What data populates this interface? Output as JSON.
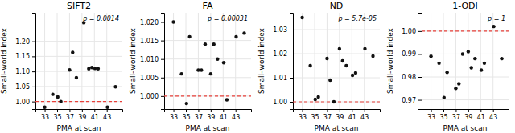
{
  "chart_data": [
    {
      "type": "scatter",
      "title": "SIFT2",
      "annotation": "p = 0.0014",
      "x_label": "PMA at scan",
      "y_label": "Small–world index",
      "xlim": [
        31.5,
        45.5
      ],
      "xticks": [
        33,
        35,
        37,
        39,
        41,
        43
      ],
      "ylim": [
        0.975,
        1.295
      ],
      "yticks": [
        {
          "value": 1.0,
          "label": "1.00"
        },
        {
          "value": 1.05,
          "label": "1.05"
        },
        {
          "value": 1.1,
          "label": "1.10"
        },
        {
          "value": 1.15,
          "label": "1.15"
        },
        {
          "value": 1.2,
          "label": "1.20"
        }
      ],
      "x": [
        33.0,
        34.3,
        35.1,
        35.6,
        37.0,
        37.5,
        38.1,
        39.3,
        40.1,
        40.6,
        41.1,
        41.6,
        43.1,
        44.4
      ],
      "values": [
        0.981,
        1.024,
        1.015,
        1.0,
        1.105,
        1.163,
        1.079,
        1.262,
        1.109,
        1.113,
        1.11,
        1.109,
        0.981,
        1.049
      ],
      "color": "#111111",
      "grid": true,
      "reference_line": {
        "value": 1.0,
        "color": "#e8403a",
        "line_style": "dashed"
      }
    },
    {
      "type": "scatter",
      "title": "FA",
      "annotation": "p = 0.00031",
      "x_label": "PMA at scan",
      "y_label": "Small–world index",
      "xlim": [
        31.5,
        45.5
      ],
      "xticks": [
        33,
        35,
        37,
        39,
        41,
        43
      ],
      "ylim": [
        0.9965,
        1.0225
      ],
      "yticks": [
        {
          "value": 1.0,
          "label": "1.000"
        },
        {
          "value": 1.005,
          "label": "1.005"
        },
        {
          "value": 1.01,
          "label": "1.010"
        },
        {
          "value": 1.015,
          "label": "1.015"
        },
        {
          "value": 1.02,
          "label": "1.020"
        }
      ],
      "x": [
        33.0,
        34.3,
        35.1,
        35.6,
        37.0,
        37.5,
        38.1,
        39.0,
        39.5,
        40.1,
        41.1,
        41.6,
        43.1,
        44.4
      ],
      "values": [
        1.02,
        1.006,
        0.998,
        1.016,
        1.007,
        1.007,
        1.014,
        1.006,
        1.014,
        1.01,
        1.009,
        0.999,
        1.016,
        1.017
      ],
      "color": "#111111",
      "grid": true,
      "reference_line": {
        "value": 1.0,
        "color": "#e8403a",
        "line_style": "dashed"
      }
    },
    {
      "type": "scatter",
      "title": "ND",
      "annotation": "p = 5.7e-05",
      "x_label": "PMA at scan",
      "y_label": "Small–world index",
      "xlim": [
        31.5,
        45.5
      ],
      "xticks": [
        33,
        35,
        37,
        39,
        41,
        43
      ],
      "ylim": [
        0.997,
        1.037
      ],
      "yticks": [
        {
          "value": 1.0,
          "label": "1.00"
        },
        {
          "value": 1.01,
          "label": "1.01"
        },
        {
          "value": 1.02,
          "label": "1.02"
        },
        {
          "value": 1.03,
          "label": "1.03"
        }
      ],
      "x": [
        33.0,
        34.3,
        35.1,
        35.6,
        37.0,
        37.5,
        38.1,
        39.0,
        39.5,
        40.1,
        41.1,
        41.6,
        43.1,
        44.4
      ],
      "values": [
        1.035,
        1.015,
        1.001,
        1.002,
        1.018,
        1.009,
        1.0,
        1.022,
        1.017,
        1.015,
        1.011,
        1.012,
        1.022,
        1.019
      ],
      "color": "#111111",
      "grid": true,
      "reference_line": {
        "value": 1.0,
        "color": "#e8403a",
        "line_style": "dashed"
      }
    },
    {
      "type": "scatter",
      "title": "1-ODI",
      "annotation": "p = 1",
      "x_label": "PMA at scan",
      "y_label": "Small–world index",
      "xlim": [
        31.5,
        45.5
      ],
      "xticks": [
        33,
        35,
        37,
        39,
        41,
        43
      ],
      "ylim": [
        0.966,
        1.008
      ],
      "yticks": [
        {
          "value": 0.97,
          "label": "0.97"
        },
        {
          "value": 0.98,
          "label": "0.98"
        },
        {
          "value": 0.99,
          "label": "0.99"
        },
        {
          "value": 1.0,
          "label": "1.00"
        }
      ],
      "x": [
        33.0,
        34.3,
        35.1,
        35.6,
        37.0,
        37.5,
        38.1,
        39.0,
        39.5,
        40.1,
        41.1,
        41.6,
        43.1,
        44.4
      ],
      "values": [
        0.989,
        0.986,
        0.971,
        0.982,
        0.975,
        0.977,
        0.99,
        0.991,
        0.984,
        0.988,
        0.983,
        0.986,
        1.002,
        0.988
      ],
      "color": "#111111",
      "grid": true,
      "reference_line": {
        "value": 1.0,
        "color": "#e8403a",
        "line_style": "dashed"
      }
    }
  ]
}
